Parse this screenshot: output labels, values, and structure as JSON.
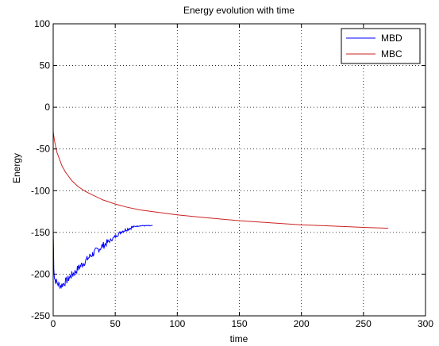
{
  "chart_data": {
    "type": "line",
    "title": "Energy evolution with time",
    "xlabel": "time",
    "ylabel": "Energy",
    "xlim": [
      0,
      300
    ],
    "ylim": [
      -250,
      100
    ],
    "xticks": [
      0,
      50,
      100,
      150,
      200,
      250,
      300
    ],
    "yticks": [
      100,
      50,
      0,
      -50,
      -100,
      -150,
      -200,
      -250
    ],
    "grid": true,
    "legend_position": "top-right",
    "series": [
      {
        "name": "MBD",
        "color": "#0000ff",
        "noisy": true,
        "x": [
          0,
          0.5,
          1,
          2,
          3,
          4,
          5,
          6,
          8,
          10,
          12,
          15,
          18,
          20,
          25,
          30,
          35,
          40,
          45,
          50,
          55,
          60,
          65,
          70,
          75,
          80
        ],
        "y": [
          -145,
          -190,
          -205,
          -208,
          -210,
          -212,
          -213,
          -214,
          -212,
          -209,
          -206,
          -201,
          -197,
          -193,
          -186,
          -178,
          -172,
          -166,
          -161,
          -155,
          -149,
          -146,
          -143,
          -142,
          -142,
          -142
        ]
      },
      {
        "name": "MBC",
        "color": "#cc2222",
        "noisy": false,
        "x": [
          0,
          1,
          2,
          3,
          5,
          7,
          10,
          15,
          20,
          25,
          30,
          40,
          50,
          60,
          70,
          80,
          100,
          120,
          150,
          180,
          200,
          220,
          250,
          270
        ],
        "y": [
          -29,
          -40,
          -47,
          -54,
          -62,
          -70,
          -78,
          -88,
          -95,
          -100,
          -104,
          -111,
          -116,
          -120,
          -123,
          -125,
          -129,
          -132,
          -136,
          -139,
          -141,
          -142,
          -144,
          -145
        ]
      }
    ]
  }
}
